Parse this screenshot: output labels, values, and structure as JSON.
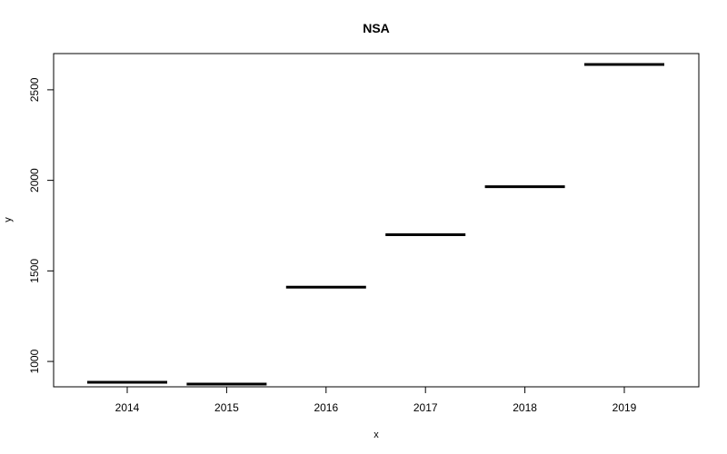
{
  "chart_data": {
    "type": "step",
    "title": "NSA",
    "xlabel": "x",
    "ylabel": "y",
    "categories": [
      "2014",
      "2015",
      "2016",
      "2017",
      "2018",
      "2019"
    ],
    "values": [
      885,
      875,
      1410,
      1700,
      1965,
      2640
    ],
    "ylim": [
      860,
      2700
    ],
    "yticks": [
      1000,
      1500,
      2000,
      2500
    ],
    "grid": false,
    "colors": {
      "line": "#000000",
      "frame": "#000000",
      "background": "#ffffff"
    }
  }
}
